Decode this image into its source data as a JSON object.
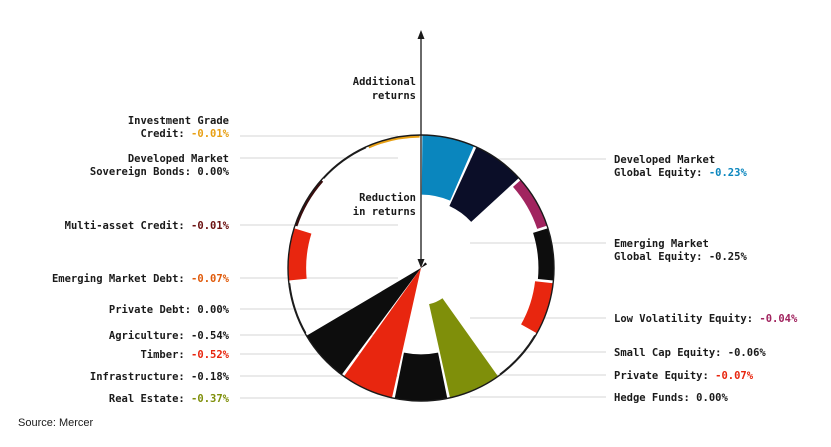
{
  "chart_data": {
    "type": "radial-bar",
    "axis": {
      "top_label": [
        "Additional",
        "returns"
      ],
      "bottom_label": [
        "Reduction",
        "in returns"
      ]
    },
    "source": "Source: Mercer",
    "categories": [
      {
        "name_lines": [
          "Developed Market",
          "Global Equity:"
        ],
        "value": -0.23,
        "value_text": "-0.23%",
        "color": "#0A86BE",
        "value_color": "#0A86BE"
      },
      {
        "name_lines": [
          "Emerging Market",
          "Global Equity:"
        ],
        "value": -0.25,
        "value_text": "-0.25%",
        "color": "#0B0E28",
        "value_color": "#1a1a1a"
      },
      {
        "name_lines": [
          "Low Volatility Equity:"
        ],
        "value": -0.04,
        "value_text": "-0.04%",
        "color": "#A1245F",
        "value_color": "#A1245F"
      },
      {
        "name_lines": [
          "Small Cap Equity:"
        ],
        "value": -0.06,
        "value_text": "-0.06%",
        "color": "#0d0d0d",
        "value_color": "#1a1a1a"
      },
      {
        "name_lines": [
          "Private Equity:"
        ],
        "value": -0.07,
        "value_text": "-0.07%",
        "color": "#E8260F",
        "value_color": "#E8260F"
      },
      {
        "name_lines": [
          "Hedge Funds:"
        ],
        "value": 0.0,
        "value_text": "0.00%",
        "color": "#1a1a1a",
        "value_color": "#1a1a1a"
      },
      {
        "name_lines": [
          "Real Estate:"
        ],
        "value": -0.37,
        "value_text": "-0.37%",
        "color": "#7F8F0A",
        "value_color": "#7F8F0A"
      },
      {
        "name_lines": [
          "Infrastructure:"
        ],
        "value": -0.18,
        "value_text": "-0.18%",
        "color": "#0d0d0d",
        "value_color": "#1a1a1a"
      },
      {
        "name_lines": [
          "Timber:"
        ],
        "value": -0.52,
        "value_text": "-0.52%",
        "color": "#E8260F",
        "value_color": "#E8260F"
      },
      {
        "name_lines": [
          "Agriculture:"
        ],
        "value": -0.54,
        "value_text": "-0.54%",
        "color": "#0d0d0d",
        "value_color": "#1a1a1a"
      },
      {
        "name_lines": [
          "Private Debt:"
        ],
        "value": 0.0,
        "value_text": "0.00%",
        "color": "#1a1a1a",
        "value_color": "#1a1a1a"
      },
      {
        "name_lines": [
          "Emerging Market Debt:"
        ],
        "value": -0.07,
        "value_text": "-0.07%",
        "color": "#E8260F",
        "value_color": "#E05A0A"
      },
      {
        "name_lines": [
          "Multi-asset Credit:"
        ],
        "value": -0.01,
        "value_text": "-0.01%",
        "color": "#3a0d0d",
        "value_color": "#6b1010"
      },
      {
        "name_lines": [
          "Developed Market",
          "Sovereign Bonds:"
        ],
        "value": 0.0,
        "value_text": "0.00%",
        "color": "#1a1a1a",
        "value_color": "#1a1a1a"
      },
      {
        "name_lines": [
          "Investment Grade",
          "Credit:"
        ],
        "value": -0.01,
        "value_text": "-0.01%",
        "color": "#E8A014",
        "value_color": "#E8A014"
      }
    ]
  }
}
